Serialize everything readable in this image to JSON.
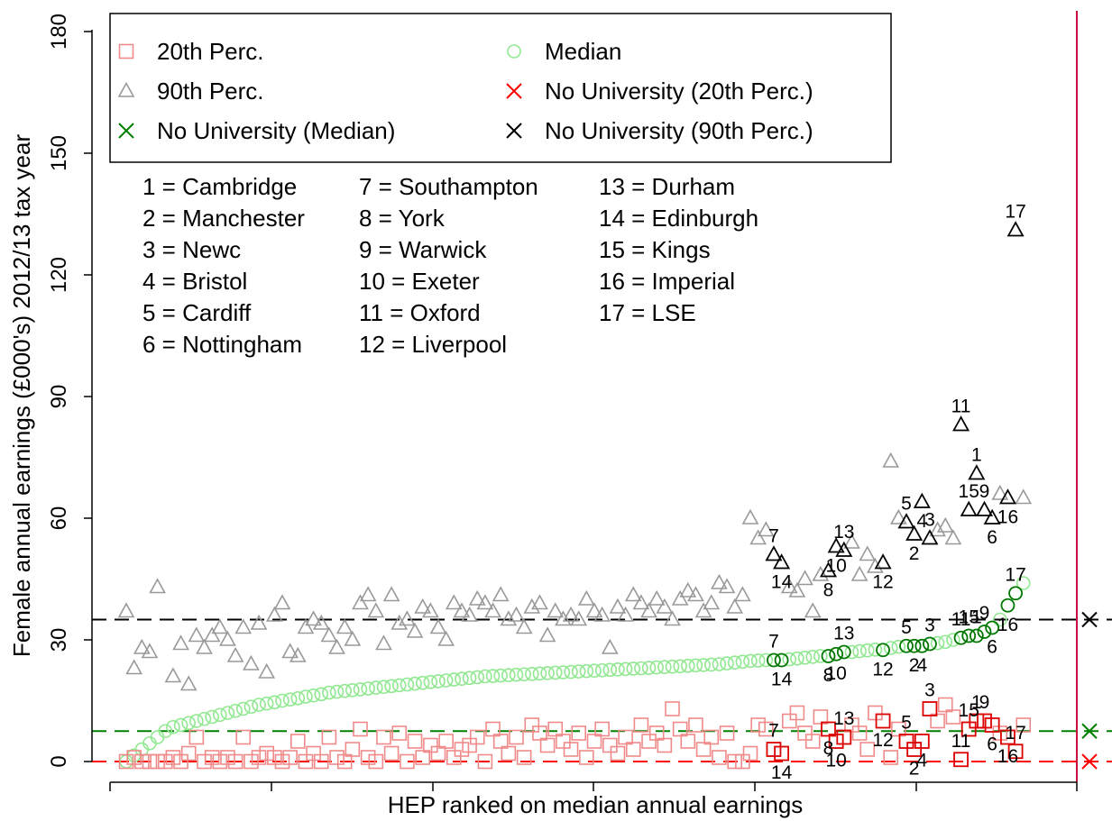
{
  "chart_data": {
    "type": "scatter",
    "ylabel": "Female annual earnings (£000's) 2012/13 tax year",
    "xlabel": "HEP ranked on median annual earnings",
    "ylim": [
      0,
      180
    ],
    "yticks": [
      0,
      30,
      60,
      90,
      120,
      150,
      180
    ],
    "xlim": [
      0,
      120
    ],
    "grid": false,
    "legend": {
      "placement": "top-left",
      "entries": [
        {
          "label": "20th Perc.",
          "marker": "square",
          "color": "#f08a8a"
        },
        {
          "label": "Median",
          "marker": "circle",
          "color": "#90e890"
        },
        {
          "label": "90th Perc.",
          "marker": "triangle",
          "color": "#999999"
        },
        {
          "label": "No University (20th Perc.)",
          "marker": "x",
          "color": "#ff0000"
        },
        {
          "label": "No University (Median)",
          "marker": "x",
          "color": "#008000"
        },
        {
          "label": "No University (90th Perc.)",
          "marker": "x",
          "color": "#000000"
        }
      ]
    },
    "key": [
      "1 = Cambridge",
      "2 = Manchester",
      "3 = Newc",
      "4 = Bristol",
      "5 = Cardiff",
      "6 = Nottingham",
      "7 = Southampton",
      "8 = York",
      "9 = Warwick",
      "10 = Exeter",
      "11 = Oxford",
      "12 = Liverpool",
      "13 = Durham",
      "14 = Edinburgh",
      "15 = Kings",
      "16 = Imperial",
      "17 = LSE"
    ],
    "reference_lines": [
      {
        "name": "No University (90th Perc.)",
        "y": 35,
        "color": "#000000"
      },
      {
        "name": "No University (Median)",
        "y": 7.5,
        "color": "#008000"
      },
      {
        "name": "No University (20th Perc.)",
        "y": 0,
        "color": "#ff0000"
      }
    ],
    "vline": {
      "x": 121.5,
      "color": "#c8103e"
    },
    "highlighted": [
      {
        "id": "7",
        "rank": 84,
        "median": 25,
        "p20": 3,
        "p90": 51
      },
      {
        "id": "14",
        "rank": 85,
        "median": 25,
        "p20": 2,
        "p90": 49
      },
      {
        "id": "8",
        "rank": 91,
        "median": 26,
        "p20": 8,
        "p90": 47
      },
      {
        "id": "10",
        "rank": 92,
        "median": 26.5,
        "p20": 5,
        "p90": 53
      },
      {
        "id": "13",
        "rank": 93,
        "median": 27,
        "p20": 6,
        "p90": 52
      },
      {
        "id": "12",
        "rank": 98,
        "median": 27.5,
        "p20": 10,
        "p90": 49
      },
      {
        "id": "5",
        "rank": 101,
        "median": 28.5,
        "p20": 5,
        "p90": 59
      },
      {
        "id": "2",
        "rank": 102,
        "median": 28.5,
        "p20": 3,
        "p90": 56
      },
      {
        "id": "4",
        "rank": 103,
        "median": 28.5,
        "p20": 5,
        "p90": 64
      },
      {
        "id": "3",
        "rank": 104,
        "median": 29,
        "p20": 13,
        "p90": 55
      },
      {
        "id": "11",
        "rank": 108,
        "median": 30.5,
        "p20": 0.5,
        "p90": 83
      },
      {
        "id": "15",
        "rank": 109,
        "median": 31,
        "p20": 8,
        "p90": 62
      },
      {
        "id": "1",
        "rank": 110,
        "median": 31,
        "p20": 10,
        "p90": 71
      },
      {
        "id": "9",
        "rank": 111,
        "median": 32,
        "p20": 10,
        "p90": 62
      },
      {
        "id": "6",
        "rank": 112,
        "median": 33,
        "p20": 9,
        "p90": 60
      },
      {
        "id": "16",
        "rank": 114,
        "median": 38.5,
        "p20": 6,
        "p90": 65
      },
      {
        "id": "17",
        "rank": 115,
        "median": 41.5,
        "p20": 2.5,
        "p90": 131
      }
    ],
    "other_p90": [
      [
        1,
        37
      ],
      [
        2,
        23
      ],
      [
        3,
        28
      ],
      [
        4,
        27
      ],
      [
        5,
        43
      ],
      [
        7,
        21
      ],
      [
        8,
        29
      ],
      [
        9,
        19
      ],
      [
        10,
        31
      ],
      [
        11,
        28
      ],
      [
        12,
        31
      ],
      [
        13,
        33
      ],
      [
        14,
        30
      ],
      [
        15,
        26
      ],
      [
        16,
        33
      ],
      [
        17,
        24
      ],
      [
        18,
        34
      ],
      [
        19,
        22
      ],
      [
        20,
        36
      ],
      [
        21,
        39
      ],
      [
        22,
        27
      ],
      [
        23,
        26
      ],
      [
        24,
        33
      ],
      [
        25,
        35
      ],
      [
        26,
        34
      ],
      [
        27,
        31
      ],
      [
        28,
        28
      ],
      [
        29,
        33
      ],
      [
        30,
        30
      ],
      [
        31,
        39
      ],
      [
        32,
        41
      ],
      [
        33,
        37
      ],
      [
        34,
        29
      ],
      [
        35,
        41
      ],
      [
        36,
        34
      ],
      [
        37,
        35
      ],
      [
        38,
        32
      ],
      [
        39,
        38
      ],
      [
        40,
        37
      ],
      [
        41,
        33
      ],
      [
        42,
        30
      ],
      [
        43,
        39
      ],
      [
        44,
        37
      ],
      [
        45,
        36
      ],
      [
        46,
        40
      ],
      [
        47,
        39
      ],
      [
        48,
        37
      ],
      [
        49,
        41
      ],
      [
        50,
        35
      ],
      [
        51,
        36
      ],
      [
        52,
        33
      ],
      [
        53,
        38
      ],
      [
        54,
        39
      ],
      [
        55,
        31
      ],
      [
        56,
        37
      ],
      [
        57,
        35
      ],
      [
        58,
        36
      ],
      [
        59,
        35
      ],
      [
        60,
        40
      ],
      [
        61,
        37
      ],
      [
        62,
        36
      ],
      [
        63,
        28
      ],
      [
        64,
        38
      ],
      [
        65,
        36
      ],
      [
        66,
        41
      ],
      [
        67,
        39
      ],
      [
        68,
        37
      ],
      [
        69,
        40
      ],
      [
        70,
        38
      ],
      [
        71,
        35
      ],
      [
        72,
        40
      ],
      [
        73,
        42
      ],
      [
        74,
        41
      ],
      [
        75,
        37
      ],
      [
        76,
        39
      ],
      [
        77,
        44
      ],
      [
        78,
        43
      ],
      [
        79,
        38
      ],
      [
        80,
        41
      ],
      [
        81,
        60
      ],
      [
        82,
        55
      ],
      [
        83,
        57
      ],
      [
        86,
        43
      ],
      [
        87,
        42
      ],
      [
        88,
        45
      ],
      [
        89,
        37
      ],
      [
        90,
        46
      ],
      [
        94,
        54
      ],
      [
        95,
        46
      ],
      [
        96,
        51
      ],
      [
        97,
        48
      ],
      [
        99,
        74
      ],
      [
        100,
        60
      ],
      [
        105,
        57
      ],
      [
        106,
        58
      ],
      [
        107,
        55
      ],
      [
        113,
        66
      ],
      [
        116,
        65
      ]
    ],
    "other_median": [
      [
        1,
        0
      ],
      [
        2,
        1.5
      ],
      [
        3,
        3
      ],
      [
        4,
        4.5
      ],
      [
        5,
        6
      ],
      [
        6,
        7.5
      ],
      [
        7,
        8.5
      ],
      [
        8,
        9
      ],
      [
        9,
        9.5
      ],
      [
        10,
        10
      ],
      [
        11,
        10.5
      ],
      [
        12,
        11
      ],
      [
        13,
        11.5
      ],
      [
        14,
        12
      ],
      [
        15,
        12.5
      ],
      [
        16,
        13
      ],
      [
        17,
        13.5
      ],
      [
        18,
        14
      ],
      [
        19,
        14.3
      ],
      [
        20,
        14.6
      ],
      [
        21,
        15
      ],
      [
        22,
        15.3
      ],
      [
        23,
        15.6
      ],
      [
        24,
        16
      ],
      [
        25,
        16.3
      ],
      [
        26,
        16.6
      ],
      [
        27,
        17
      ],
      [
        28,
        17.2
      ],
      [
        29,
        17.4
      ],
      [
        30,
        17.6
      ],
      [
        31,
        17.8
      ],
      [
        32,
        18
      ],
      [
        33,
        18.2
      ],
      [
        34,
        18.4
      ],
      [
        35,
        18.6
      ],
      [
        36,
        18.8
      ],
      [
        37,
        19
      ],
      [
        38,
        19.2
      ],
      [
        39,
        19.4
      ],
      [
        40,
        19.6
      ],
      [
        41,
        19.8
      ],
      [
        42,
        20
      ],
      [
        43,
        20.2
      ],
      [
        44,
        20.4
      ],
      [
        45,
        20.6
      ],
      [
        46,
        20.8
      ],
      [
        47,
        21
      ],
      [
        48,
        21.1
      ],
      [
        49,
        21.2
      ],
      [
        50,
        21.3
      ],
      [
        51,
        21.4
      ],
      [
        52,
        21.5
      ],
      [
        53,
        21.6
      ],
      [
        54,
        21.7
      ],
      [
        55,
        21.8
      ],
      [
        56,
        21.9
      ],
      [
        57,
        22
      ],
      [
        58,
        22.1
      ],
      [
        59,
        22.2
      ],
      [
        60,
        22.3
      ],
      [
        61,
        22.4
      ],
      [
        62,
        22.5
      ],
      [
        63,
        22.6
      ],
      [
        64,
        22.7
      ],
      [
        65,
        22.8
      ],
      [
        66,
        22.9
      ],
      [
        67,
        23
      ],
      [
        68,
        23.1
      ],
      [
        69,
        23.2
      ],
      [
        70,
        23.3
      ],
      [
        71,
        23.4
      ],
      [
        72,
        23.5
      ],
      [
        73,
        23.6
      ],
      [
        74,
        23.7
      ],
      [
        75,
        23.8
      ],
      [
        76,
        23.9
      ],
      [
        77,
        24
      ],
      [
        78,
        24.2
      ],
      [
        79,
        24.4
      ],
      [
        80,
        24.6
      ],
      [
        81,
        24.8
      ],
      [
        82,
        24.9
      ],
      [
        83,
        25
      ],
      [
        86,
        25.2
      ],
      [
        87,
        25.4
      ],
      [
        88,
        25.6
      ],
      [
        89,
        25.8
      ],
      [
        90,
        26
      ],
      [
        94,
        27
      ],
      [
        95,
        27.2
      ],
      [
        96,
        27.4
      ],
      [
        97,
        27.6
      ],
      [
        99,
        28
      ],
      [
        100,
        28.3
      ],
      [
        105,
        29.2
      ],
      [
        106,
        29.5
      ],
      [
        107,
        30
      ],
      [
        113,
        35
      ],
      [
        116,
        44
      ]
    ],
    "other_p20": [
      [
        1,
        0
      ],
      [
        2,
        1
      ],
      [
        3,
        0
      ],
      [
        4,
        0
      ],
      [
        5,
        0
      ],
      [
        6,
        0
      ],
      [
        7,
        1
      ],
      [
        8,
        0
      ],
      [
        9,
        2
      ],
      [
        10,
        6
      ],
      [
        11,
        0
      ],
      [
        12,
        1
      ],
      [
        13,
        0
      ],
      [
        14,
        1
      ],
      [
        15,
        0
      ],
      [
        16,
        6
      ],
      [
        17,
        0
      ],
      [
        18,
        1
      ],
      [
        19,
        2
      ],
      [
        20,
        1
      ],
      [
        21,
        0
      ],
      [
        22,
        1
      ],
      [
        23,
        5
      ],
      [
        24,
        0
      ],
      [
        25,
        2
      ],
      [
        26,
        0
      ],
      [
        27,
        6
      ],
      [
        28,
        1
      ],
      [
        29,
        0
      ],
      [
        30,
        3
      ],
      [
        31,
        8
      ],
      [
        32,
        1
      ],
      [
        33,
        0
      ],
      [
        34,
        6
      ],
      [
        35,
        2
      ],
      [
        36,
        7
      ],
      [
        37,
        0
      ],
      [
        38,
        5
      ],
      [
        39,
        1
      ],
      [
        40,
        4
      ],
      [
        41,
        2
      ],
      [
        42,
        5
      ],
      [
        43,
        1
      ],
      [
        44,
        3
      ],
      [
        45,
        4
      ],
      [
        46,
        6
      ],
      [
        47,
        0
      ],
      [
        48,
        8
      ],
      [
        49,
        5
      ],
      [
        50,
        2
      ],
      [
        51,
        6
      ],
      [
        52,
        1
      ],
      [
        53,
        9
      ],
      [
        54,
        7
      ],
      [
        55,
        4
      ],
      [
        56,
        8
      ],
      [
        57,
        5
      ],
      [
        58,
        3
      ],
      [
        59,
        7
      ],
      [
        60,
        1
      ],
      [
        61,
        5
      ],
      [
        62,
        8
      ],
      [
        63,
        4
      ],
      [
        64,
        2
      ],
      [
        65,
        6
      ],
      [
        66,
        3
      ],
      [
        67,
        9
      ],
      [
        68,
        5
      ],
      [
        69,
        7
      ],
      [
        70,
        4
      ],
      [
        71,
        13
      ],
      [
        72,
        8
      ],
      [
        73,
        5
      ],
      [
        74,
        9
      ],
      [
        75,
        3
      ],
      [
        76,
        6
      ],
      [
        77,
        1
      ],
      [
        78,
        7
      ],
      [
        79,
        0
      ],
      [
        80,
        0
      ],
      [
        81,
        2
      ],
      [
        82,
        9
      ],
      [
        83,
        8
      ],
      [
        86,
        10
      ],
      [
        87,
        12
      ],
      [
        88,
        7
      ],
      [
        89,
        5
      ],
      [
        90,
        11
      ],
      [
        94,
        9
      ],
      [
        95,
        7
      ],
      [
        96,
        3
      ],
      [
        97,
        12
      ],
      [
        99,
        1
      ],
      [
        100,
        8
      ],
      [
        105,
        10
      ],
      [
        106,
        14
      ],
      [
        107,
        11
      ],
      [
        113,
        7
      ],
      [
        116,
        9
      ]
    ],
    "no_university_markers": [
      {
        "name": "No University (90th Perc.)",
        "y": 35,
        "color": "#000000"
      },
      {
        "name": "No University (Median)",
        "y": 7.5,
        "color": "#008000"
      },
      {
        "name": "No University (20th Perc.)",
        "y": 0,
        "color": "#ff0000"
      }
    ],
    "colors": {
      "p20_other": "#f08a8a",
      "p20_highlight": "#dd0000",
      "median_other": "#90e890",
      "median_highlight": "#007700",
      "p90_other": "#999999",
      "p90_highlight": "#000000"
    }
  }
}
